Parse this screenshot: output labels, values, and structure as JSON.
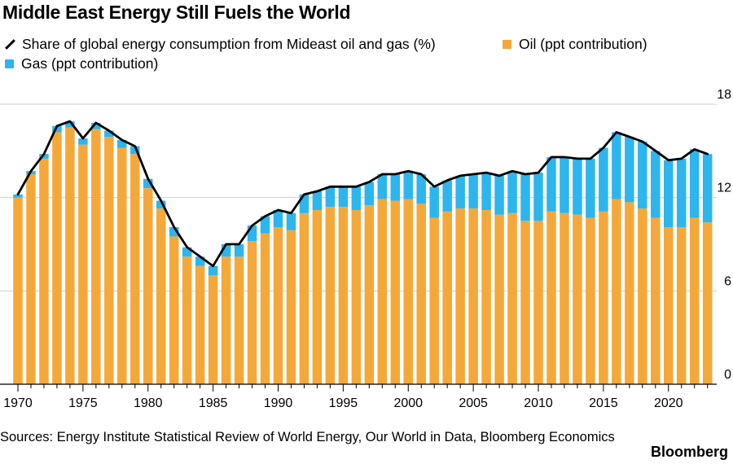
{
  "chart_data": {
    "type": "bar",
    "title": "Middle East Energy Still Fuels the World",
    "stacked": true,
    "legend": [
      {
        "key": "share",
        "label": "Share of global energy consumption from Mideast oil and gas (%)",
        "kind": "line",
        "color": "#000000"
      },
      {
        "key": "oil",
        "label": "Oil (ppt contribution)",
        "kind": "bar",
        "color": "#F5A83A"
      },
      {
        "key": "gas",
        "label": "Gas (ppt contribution)",
        "kind": "bar",
        "color": "#2DB5EE"
      }
    ],
    "ylim": [
      0,
      18
    ],
    "yticks": [
      0,
      6,
      12,
      18
    ],
    "xticks": [
      1970,
      1975,
      1980,
      1985,
      1990,
      1995,
      2000,
      2005,
      2010,
      2015,
      2020
    ],
    "years": [
      1970,
      1971,
      1972,
      1973,
      1974,
      1975,
      1976,
      1977,
      1978,
      1979,
      1980,
      1981,
      1982,
      1983,
      1984,
      1985,
      1986,
      1987,
      1988,
      1989,
      1990,
      1991,
      1992,
      1993,
      1994,
      1995,
      1996,
      1997,
      1998,
      1999,
      2000,
      2001,
      2002,
      2003,
      2004,
      2005,
      2006,
      2007,
      2008,
      2009,
      2010,
      2011,
      2012,
      2013,
      2014,
      2015,
      2016,
      2017,
      2018,
      2019,
      2020,
      2021,
      2022,
      2023
    ],
    "series": [
      {
        "name": "Oil (ppt contribution)",
        "key": "oil",
        "values": [
          12.0,
          13.5,
          14.5,
          16.2,
          16.5,
          15.4,
          16.4,
          15.9,
          15.2,
          14.8,
          12.6,
          11.3,
          9.5,
          8.2,
          7.6,
          7.0,
          8.2,
          8.2,
          9.2,
          9.7,
          10.1,
          9.9,
          11.0,
          11.2,
          11.4,
          11.4,
          11.2,
          11.5,
          11.9,
          11.8,
          11.9,
          11.6,
          10.7,
          11.1,
          11.3,
          11.3,
          11.2,
          10.9,
          11.0,
          10.5,
          10.5,
          11.1,
          11.0,
          10.9,
          10.7,
          11.1,
          11.9,
          11.7,
          11.3,
          10.7,
          10.1,
          10.1,
          10.7,
          10.4
        ]
      },
      {
        "name": "Gas (ppt contribution)",
        "key": "gas",
        "values": [
          0.2,
          0.2,
          0.3,
          0.4,
          0.4,
          0.4,
          0.4,
          0.4,
          0.5,
          0.5,
          0.6,
          0.5,
          0.6,
          0.6,
          0.6,
          0.6,
          0.8,
          0.8,
          1.0,
          1.1,
          1.1,
          1.1,
          1.2,
          1.2,
          1.3,
          1.3,
          1.5,
          1.5,
          1.6,
          1.7,
          1.8,
          1.9,
          2.0,
          2.0,
          2.1,
          2.2,
          2.4,
          2.5,
          2.7,
          3.0,
          3.1,
          3.5,
          3.6,
          3.6,
          3.8,
          4.1,
          4.3,
          4.2,
          4.3,
          4.3,
          4.3,
          4.4,
          4.4,
          4.4
        ]
      }
    ],
    "line": {
      "name": "Share of global energy consumption from Mideast oil and gas (%)",
      "values": [
        12.2,
        13.7,
        14.8,
        16.6,
        16.9,
        15.8,
        16.8,
        16.3,
        15.7,
        15.3,
        13.2,
        11.8,
        10.1,
        8.8,
        8.2,
        7.6,
        9.0,
        9.0,
        10.2,
        10.8,
        11.2,
        11.0,
        12.2,
        12.4,
        12.7,
        12.7,
        12.7,
        13.0,
        13.5,
        13.5,
        13.7,
        13.5,
        12.7,
        13.1,
        13.4,
        13.5,
        13.6,
        13.4,
        13.7,
        13.5,
        13.6,
        14.6,
        14.6,
        14.5,
        14.5,
        15.2,
        16.2,
        15.9,
        15.6,
        15.0,
        14.4,
        14.5,
        15.1,
        14.8
      ]
    },
    "source": "Sources: Energy Institute Statistical Review of World Energy, Our World in Data, Bloomberg Economics",
    "brand": "Bloomberg"
  }
}
